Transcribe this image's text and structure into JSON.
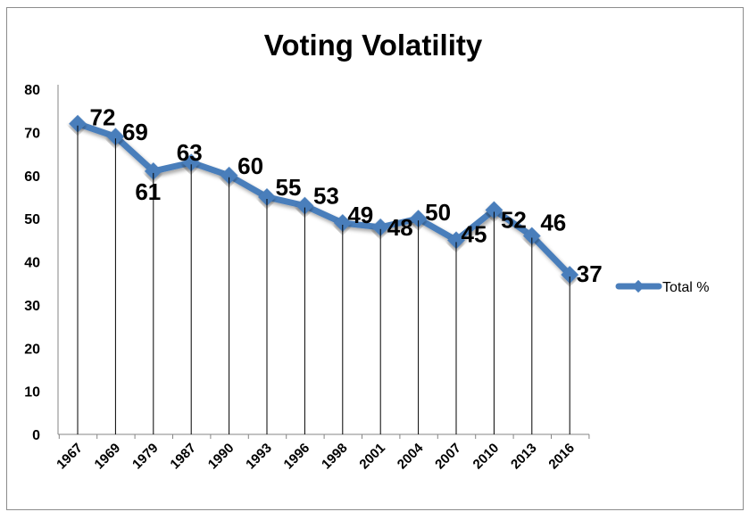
{
  "chart_data": {
    "type": "line",
    "title": "Voting Volatility",
    "xlabel": "",
    "ylabel": "",
    "categories": [
      "1967",
      "1969",
      "1979",
      "1987",
      "1990",
      "1993",
      "1996",
      "1998",
      "2001",
      "2004",
      "2007",
      "2010",
      "2013",
      "2016"
    ],
    "series": [
      {
        "name": "Total %",
        "values": [
          72,
          69,
          61,
          63,
          60,
          55,
          53,
          49,
          48,
          50,
          45,
          52,
          46,
          37
        ],
        "color": "#4a7ebb",
        "marker": "diamond",
        "data_labels": [
          "72",
          "69",
          "61",
          "63",
          "60",
          "55",
          "53",
          "49",
          "48",
          "50",
          "45",
          "52",
          "46",
          "37"
        ]
      }
    ],
    "ylim": [
      0,
      80
    ],
    "yticks": [
      0,
      10,
      20,
      30,
      40,
      50,
      60,
      70,
      80
    ],
    "drop_lines": true,
    "grid": false,
    "legend": {
      "position": "right",
      "entries": [
        "Total %"
      ]
    }
  }
}
